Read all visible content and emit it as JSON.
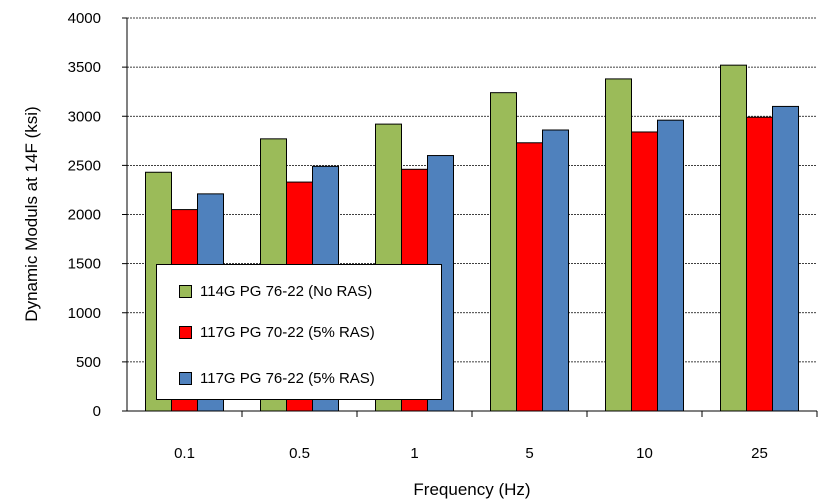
{
  "chart_data": {
    "type": "bar",
    "title": "",
    "xlabel": "Frequency (Hz)",
    "ylabel": "Dynamic Moduls at 14F (ksi)",
    "categories": [
      "0.1",
      "0.5",
      "1",
      "5",
      "10",
      "25"
    ],
    "ylim": [
      0,
      4000
    ],
    "yticks": [
      0,
      500,
      1000,
      1500,
      2000,
      2500,
      3000,
      3500,
      4000
    ],
    "grid": true,
    "legend_position": "bottom-left",
    "series": [
      {
        "name": "114G PG 76-22 (No RAS)",
        "color": "#9BBB59",
        "values": [
          2430,
          2770,
          2920,
          3240,
          3380,
          3520
        ]
      },
      {
        "name": "117G PG 70-22 (5% RAS)",
        "color": "#FF0000",
        "values": [
          2050,
          2330,
          2460,
          2730,
          2840,
          2990
        ]
      },
      {
        "name": "117G PG 76-22 (5% RAS)",
        "color": "#4F81BD",
        "values": [
          2210,
          2490,
          2600,
          2860,
          2960,
          3100
        ]
      }
    ]
  }
}
